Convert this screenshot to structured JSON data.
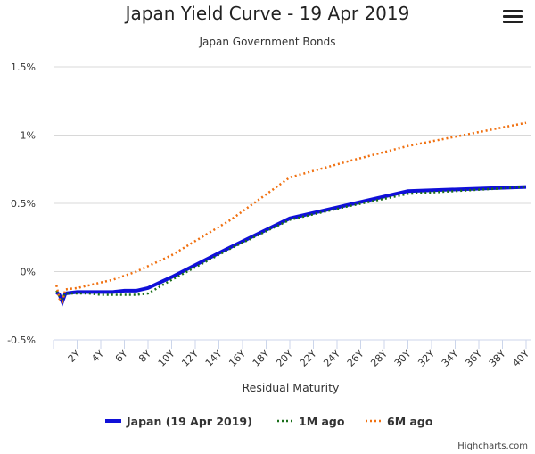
{
  "chart_data": {
    "type": "line",
    "title": "Japan Yield Curve - 19 Apr 2019",
    "subtitle": "Japan Government Bonds",
    "xlabel": "Residual Maturity",
    "ylabel": "",
    "xlim": [
      0,
      40
    ],
    "ylim": [
      -0.5,
      1.5
    ],
    "x_ticks": [
      "2Y",
      "4Y",
      "6Y",
      "8Y",
      "10Y",
      "12Y",
      "14Y",
      "16Y",
      "18Y",
      "20Y",
      "22Y",
      "24Y",
      "26Y",
      "28Y",
      "30Y",
      "32Y",
      "34Y",
      "36Y",
      "38Y",
      "40Y"
    ],
    "y_ticks": [
      {
        "v": -0.5,
        "label": "-0.5%"
      },
      {
        "v": 0,
        "label": "0%"
      },
      {
        "v": 0.5,
        "label": "0.5%"
      },
      {
        "v": 1,
        "label": "1%"
      },
      {
        "v": 1.5,
        "label": "1.5%"
      }
    ],
    "grid": true,
    "legend": "bottom",
    "series": [
      {
        "name": "Japan (19 Apr 2019)",
        "color": "#1010d8",
        "style": "solid",
        "x": [
          0.25,
          0.5,
          0.75,
          1,
          2,
          3,
          4,
          5,
          6,
          7,
          8,
          9,
          10,
          15,
          20,
          25,
          30,
          40
        ],
        "y": [
          -0.15,
          -0.17,
          -0.22,
          -0.16,
          -0.15,
          -0.15,
          -0.15,
          -0.15,
          -0.14,
          -0.14,
          -0.12,
          -0.08,
          -0.04,
          0.18,
          0.39,
          0.49,
          0.59,
          0.62
        ]
      },
      {
        "name": "1M ago",
        "color": "#1a6e1a",
        "style": "dotted",
        "x": [
          0.25,
          0.5,
          0.75,
          1,
          2,
          3,
          4,
          5,
          6,
          7,
          8,
          9,
          10,
          15,
          20,
          25,
          30,
          40
        ],
        "y": [
          -0.14,
          -0.18,
          -0.2,
          -0.16,
          -0.16,
          -0.16,
          -0.17,
          -0.17,
          -0.17,
          -0.17,
          -0.16,
          -0.11,
          -0.06,
          0.17,
          0.38,
          0.48,
          0.57,
          0.62
        ]
      },
      {
        "name": "6M ago",
        "color": "#f07010",
        "style": "dotted",
        "x": [
          0.25,
          0.5,
          0.75,
          1,
          2,
          3,
          4,
          5,
          6,
          7,
          8,
          9,
          10,
          15,
          20,
          25,
          30,
          40
        ],
        "y": [
          -0.1,
          -0.2,
          -0.22,
          -0.13,
          -0.12,
          -0.1,
          -0.08,
          -0.06,
          -0.03,
          0.0,
          0.04,
          0.08,
          0.12,
          0.38,
          0.69,
          0.81,
          0.92,
          1.09
        ]
      }
    ]
  },
  "credits": "Highcharts.com"
}
